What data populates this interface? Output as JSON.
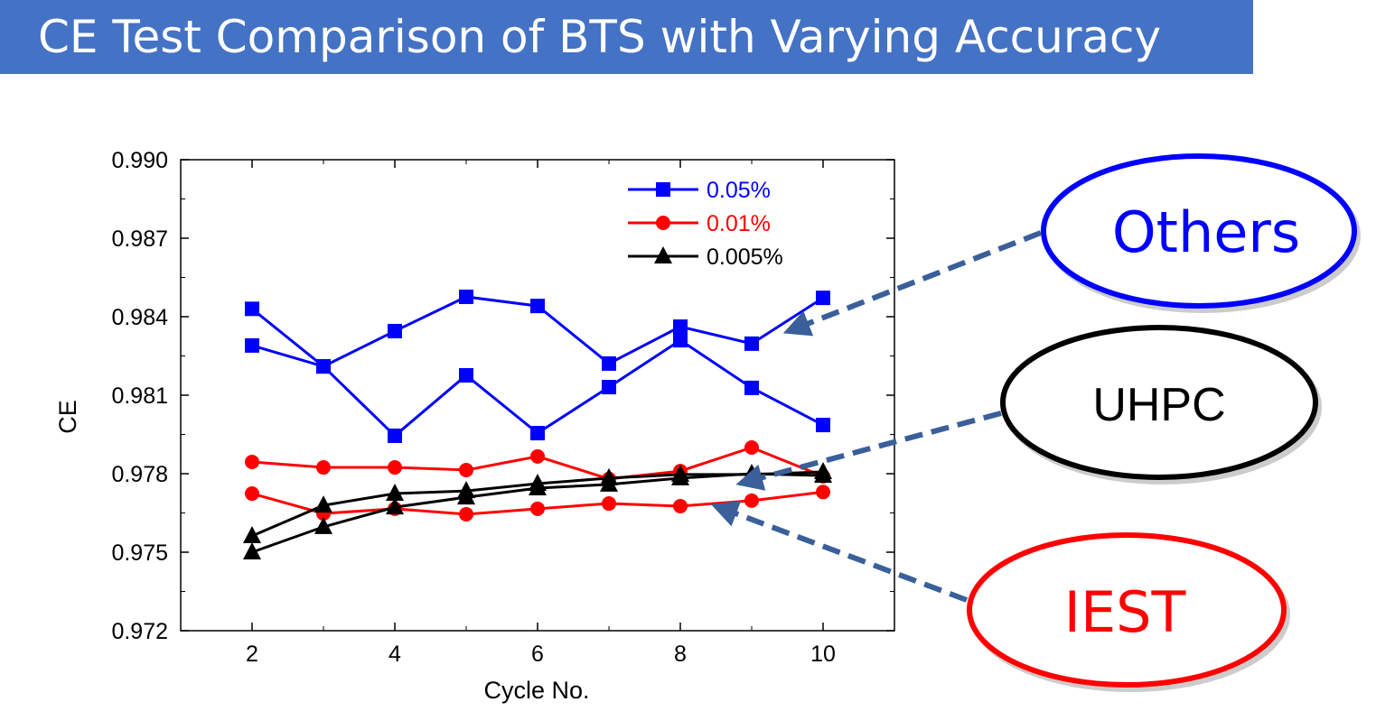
{
  "slide": {
    "title": "CE Test Comparison of BTS with Varying Accuracy"
  },
  "callouts": [
    {
      "label": "Others",
      "color": "#0000ff"
    },
    {
      "label": "UHPC",
      "color": "#000000"
    },
    {
      "label": "IEST",
      "color": "#ff0000"
    }
  ],
  "chart_data": {
    "type": "line",
    "title": "",
    "xlabel": "Cycle No.",
    "ylabel": "CE",
    "xlim": [
      1,
      11
    ],
    "ylim": [
      0.972,
      0.99
    ],
    "xticks": [
      "2",
      "4",
      "6",
      "8",
      "10"
    ],
    "yticks": [
      "0.972",
      "0.975",
      "0.978",
      "0.981",
      "0.984",
      "0.987",
      "0.990"
    ],
    "legend_position": "top-right",
    "legend": [
      {
        "label": "0.05%",
        "color": "#0000ff",
        "marker": "square"
      },
      {
        "label": "0.01%",
        "color": "#ff0000",
        "marker": "circle"
      },
      {
        "label": "0.005%",
        "color": "#000000",
        "marker": "triangle"
      }
    ],
    "x": [
      2,
      3,
      4,
      5,
      6,
      7,
      8,
      9,
      10
    ],
    "series": [
      {
        "name": "0.05% (run 1)",
        "color": "#0000ff",
        "marker": "square",
        "values": [
          0.9843,
          0.9821,
          0.98345,
          0.98476,
          0.98441,
          0.98221,
          0.98362,
          0.98297,
          0.98472
        ]
      },
      {
        "name": "0.05% (run 2)",
        "color": "#0000ff",
        "marker": "square",
        "values": [
          0.9829,
          0.9821,
          0.97945,
          0.98176,
          0.97955,
          0.98131,
          0.9831,
          0.98128,
          0.97986
        ]
      },
      {
        "name": "0.01% (run 1)",
        "color": "#ff0000",
        "marker": "circle",
        "values": [
          0.97845,
          0.97824,
          0.97824,
          0.97814,
          0.97866,
          0.9778,
          0.9781,
          0.979,
          0.9779
        ]
      },
      {
        "name": "0.01% (run 2)",
        "color": "#ff0000",
        "marker": "circle",
        "values": [
          0.97724,
          0.97648,
          0.97666,
          0.97645,
          0.97666,
          0.97686,
          0.97676,
          0.97697,
          0.9773
        ]
      },
      {
        "name": "0.005% (run 1)",
        "color": "#000000",
        "marker": "triangle",
        "values": [
          0.97562,
          0.97679,
          0.97724,
          0.97734,
          0.97762,
          0.97783,
          0.97797,
          0.97797,
          0.97807
        ]
      },
      {
        "name": "0.005% (run 2)",
        "color": "#000000",
        "marker": "triangle",
        "values": [
          0.975,
          0.97597,
          0.97672,
          0.9771,
          0.97745,
          0.97759,
          0.97783,
          0.978,
          0.97793
        ]
      }
    ]
  }
}
